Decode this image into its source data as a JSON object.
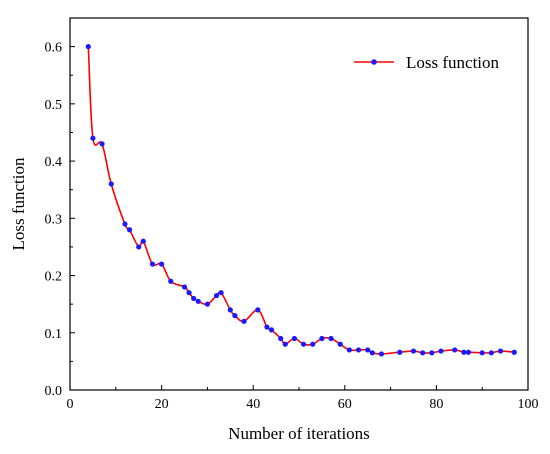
{
  "chart_data": {
    "type": "line",
    "title": "",
    "xlabel": "Number of iterations",
    "ylabel": "Loss function",
    "xlim": [
      0,
      100
    ],
    "ylim": [
      0,
      0.65
    ],
    "xticks": [
      0,
      20,
      40,
      60,
      80,
      100
    ],
    "xtick_labels": [
      "0",
      "20",
      "40",
      "60",
      "80",
      "100"
    ],
    "yticks": [
      0,
      0.1,
      0.2,
      0.3,
      0.4,
      0.5,
      0.6
    ],
    "ytick_labels": [
      "0.0",
      "0.1",
      "0.2",
      "0.3",
      "0.4",
      "0.5",
      "0.6"
    ],
    "grid": false,
    "legend_position": "top-right",
    "series": [
      {
        "name": "Loss function",
        "line_color": "#ff0000",
        "marker_color": "#1a1aff",
        "x": [
          4,
          5,
          7,
          9,
          12,
          13,
          15,
          16,
          18,
          20,
          22,
          25,
          26,
          27,
          28,
          30,
          32,
          33,
          35,
          36,
          38,
          41,
          43,
          44,
          46,
          47,
          49,
          51,
          53,
          55,
          57,
          59,
          61,
          63,
          65,
          66,
          68,
          72,
          75,
          77,
          79,
          81,
          84,
          86,
          87,
          90,
          92,
          94,
          97
        ],
        "y": [
          0.6,
          0.44,
          0.43,
          0.36,
          0.29,
          0.28,
          0.25,
          0.26,
          0.22,
          0.22,
          0.19,
          0.18,
          0.17,
          0.16,
          0.155,
          0.15,
          0.165,
          0.17,
          0.14,
          0.13,
          0.12,
          0.14,
          0.11,
          0.105,
          0.09,
          0.08,
          0.09,
          0.08,
          0.08,
          0.09,
          0.09,
          0.08,
          0.07,
          0.07,
          0.07,
          0.065,
          0.063,
          0.066,
          0.068,
          0.065,
          0.065,
          0.068,
          0.07,
          0.066,
          0.066,
          0.065,
          0.065,
          0.068,
          0.066
        ]
      }
    ]
  }
}
